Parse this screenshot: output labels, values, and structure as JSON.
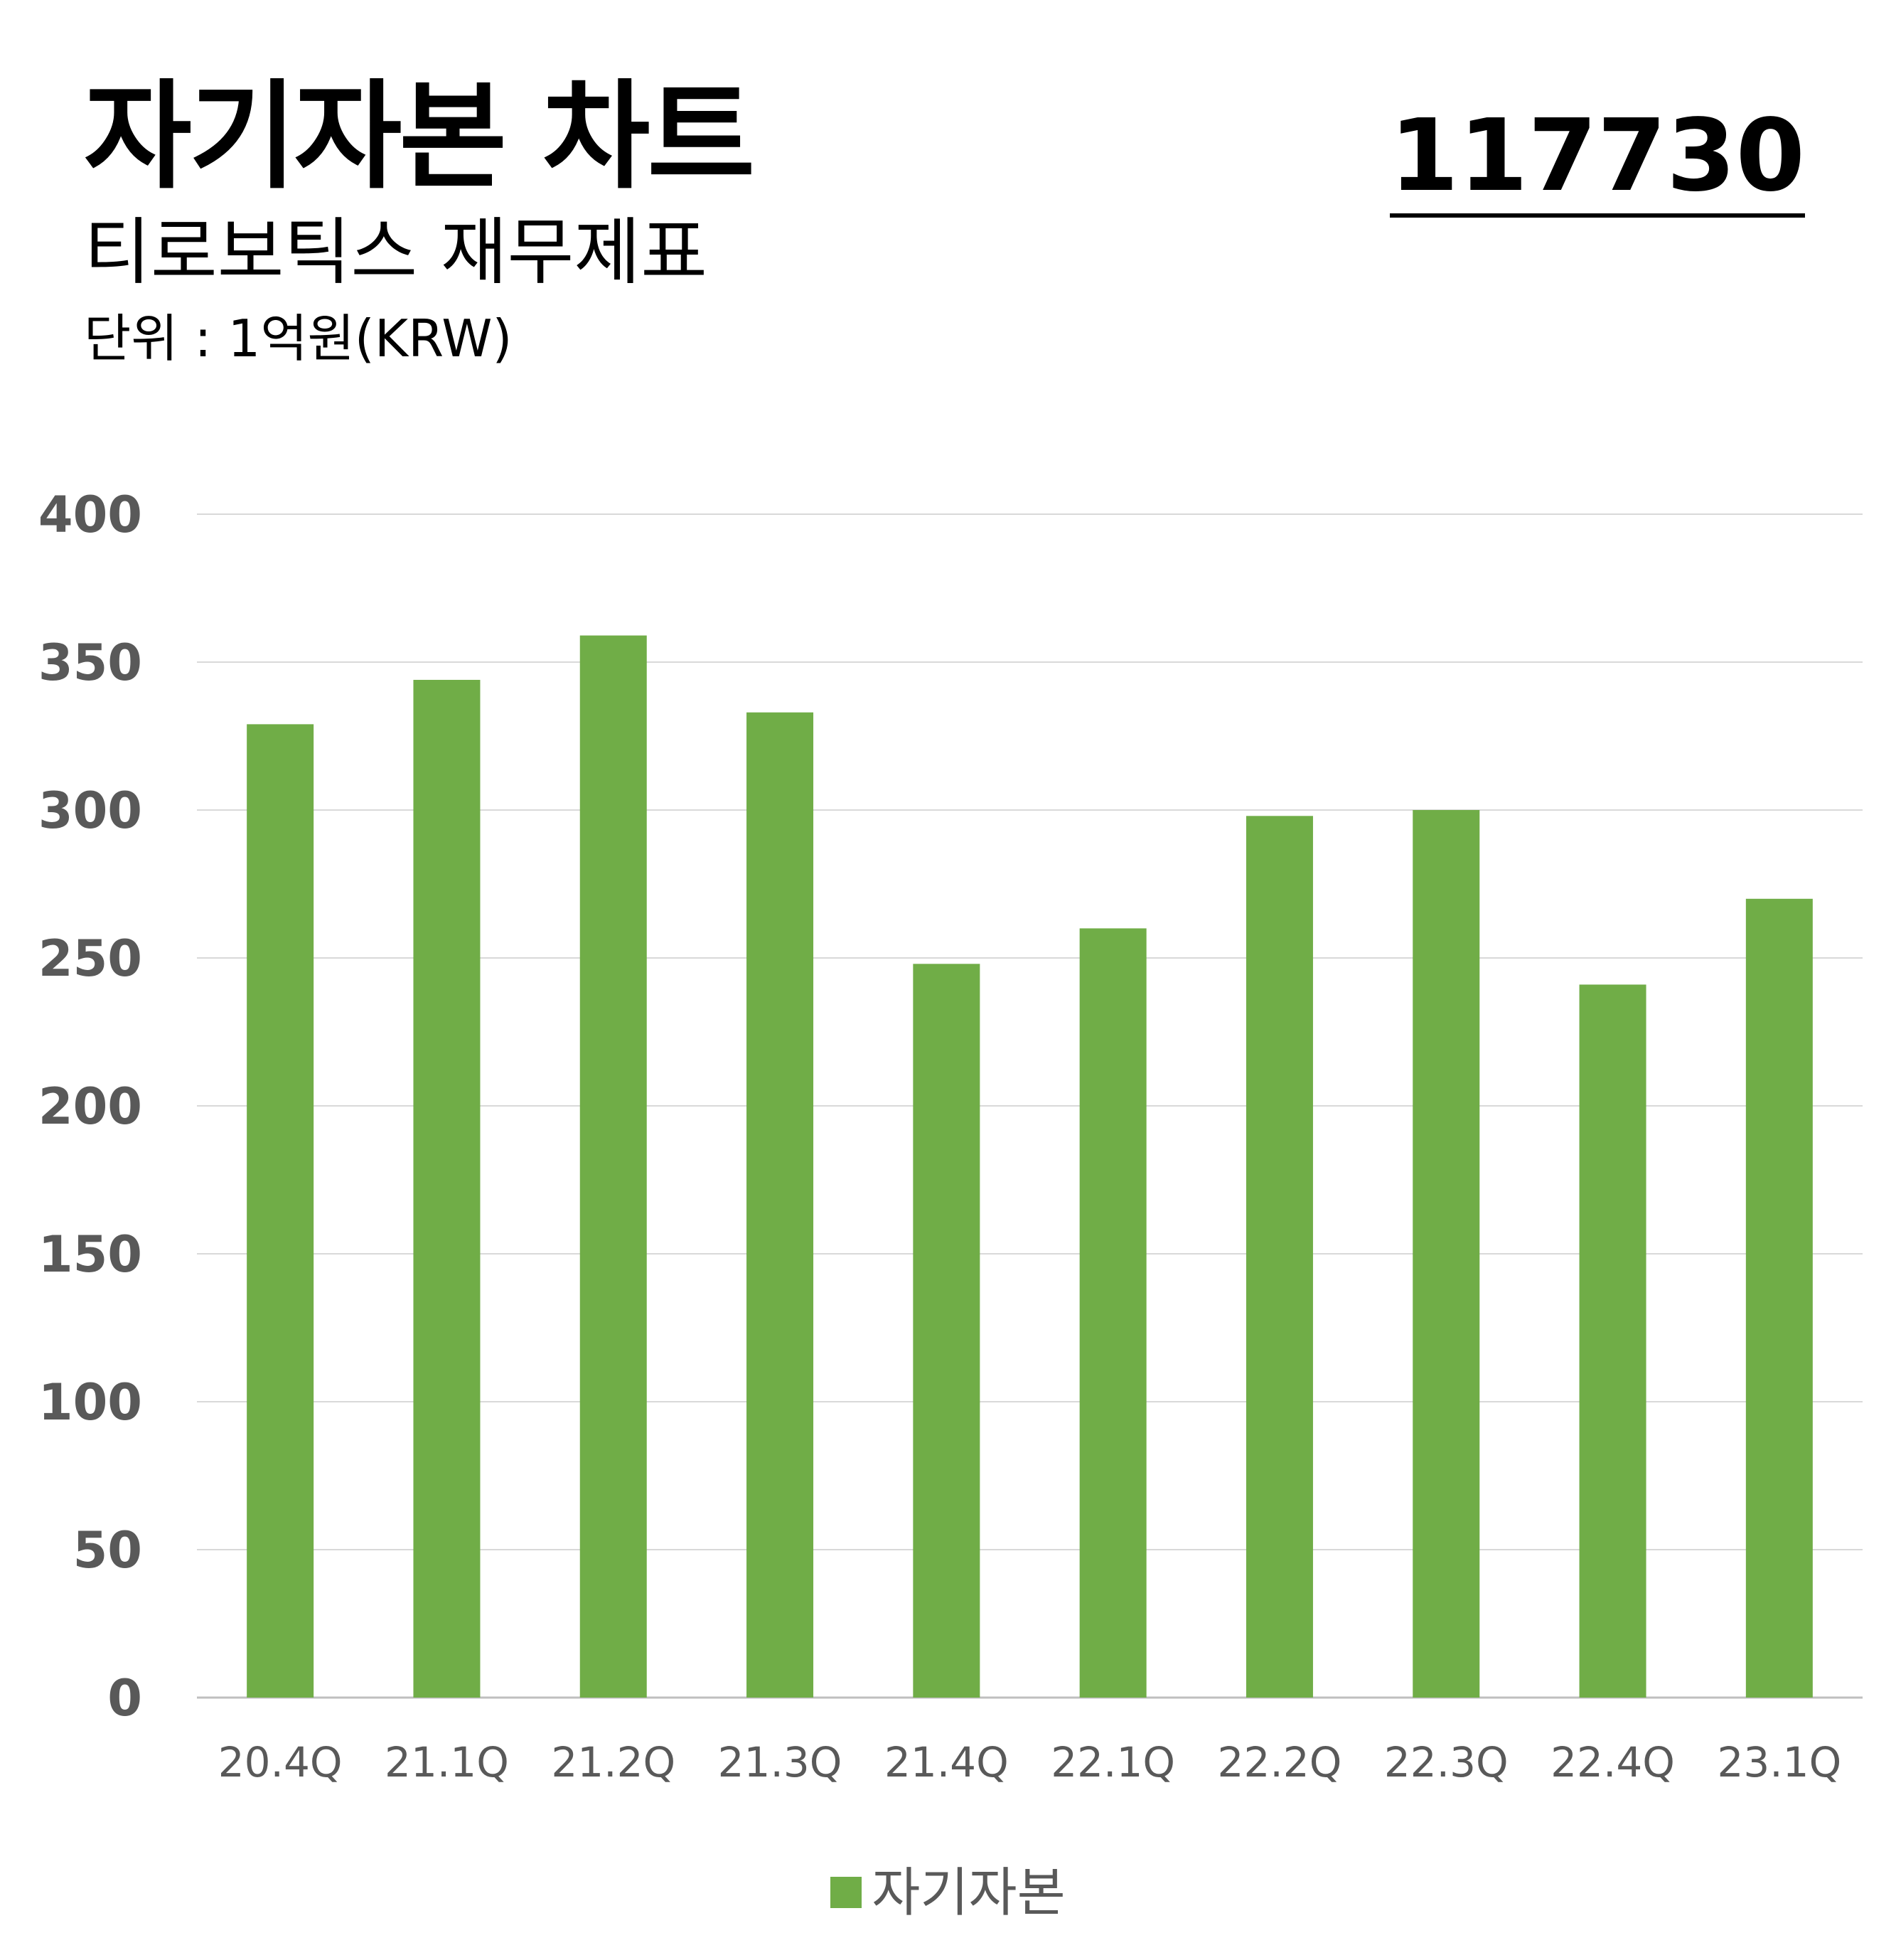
{
  "header": {
    "title": "자기자본 차트",
    "subtitle": "티로보틱스 재무제표",
    "unit": "단위 : 1억원(KRW)",
    "code": "117730"
  },
  "colors": {
    "bar": "#70ad47",
    "grid": "#d9d9d9",
    "axis": "#bfbfbf",
    "tick_text": "#595959"
  },
  "chart_data": {
    "type": "bar",
    "categories": [
      "20.4Q",
      "21.1Q",
      "21.2Q",
      "21.3Q",
      "21.4Q",
      "22.1Q",
      "22.2Q",
      "22.3Q",
      "22.4Q",
      "23.1Q"
    ],
    "series": [
      {
        "name": "자기자본",
        "values": [
          329,
          344,
          359,
          333,
          248,
          260,
          298,
          300,
          241,
          270
        ]
      }
    ],
    "ylim": [
      0,
      400
    ],
    "yticks": [
      0,
      50,
      100,
      150,
      200,
      250,
      300,
      350,
      400
    ],
    "grid": true,
    "legend": "bottom-center"
  }
}
